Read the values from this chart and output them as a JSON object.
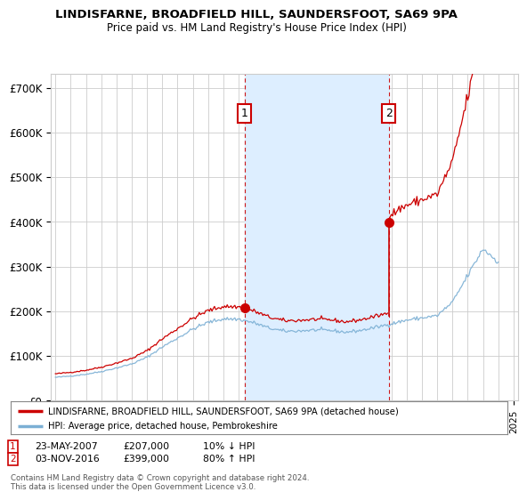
{
  "title1": "LINDISFARNE, BROADFIELD HILL, SAUNDERSFOOT, SA69 9PA",
  "title2": "Price paid vs. HM Land Registry's House Price Index (HPI)",
  "background_color": "#ffffff",
  "grid_color": "#cccccc",
  "red_line_color": "#cc0000",
  "blue_line_color": "#7bafd4",
  "shade_color": "#ddeeff",
  "legend_red_label": "LINDISFARNE, BROADFIELD HILL, SAUNDERSFOOT, SA69 9PA (detached house)",
  "legend_blue_label": "HPI: Average price, detached house, Pembrokeshire",
  "ann1_date": "23-MAY-2007",
  "ann1_price": "£207,000",
  "ann1_pct": "10% ↓ HPI",
  "ann2_date": "03-NOV-2016",
  "ann2_price": "£399,000",
  "ann2_pct": "80% ↑ HPI",
  "footer": "Contains HM Land Registry data © Crown copyright and database right 2024.\nThis data is licensed under the Open Government Licence v3.0.",
  "yticks": [
    0,
    100000,
    200000,
    300000,
    400000,
    500000,
    600000,
    700000
  ],
  "ytick_labels": [
    "£0",
    "£100K",
    "£200K",
    "£300K",
    "£400K",
    "£500K",
    "£600K",
    "£700K"
  ],
  "ylim": [
    0,
    730000
  ],
  "xlim_start": 1994.7,
  "xlim_end": 2025.3,
  "sale1_year": 2007.38,
  "sale1_price": 207000,
  "sale2_year": 2016.83,
  "sale2_price": 399000
}
